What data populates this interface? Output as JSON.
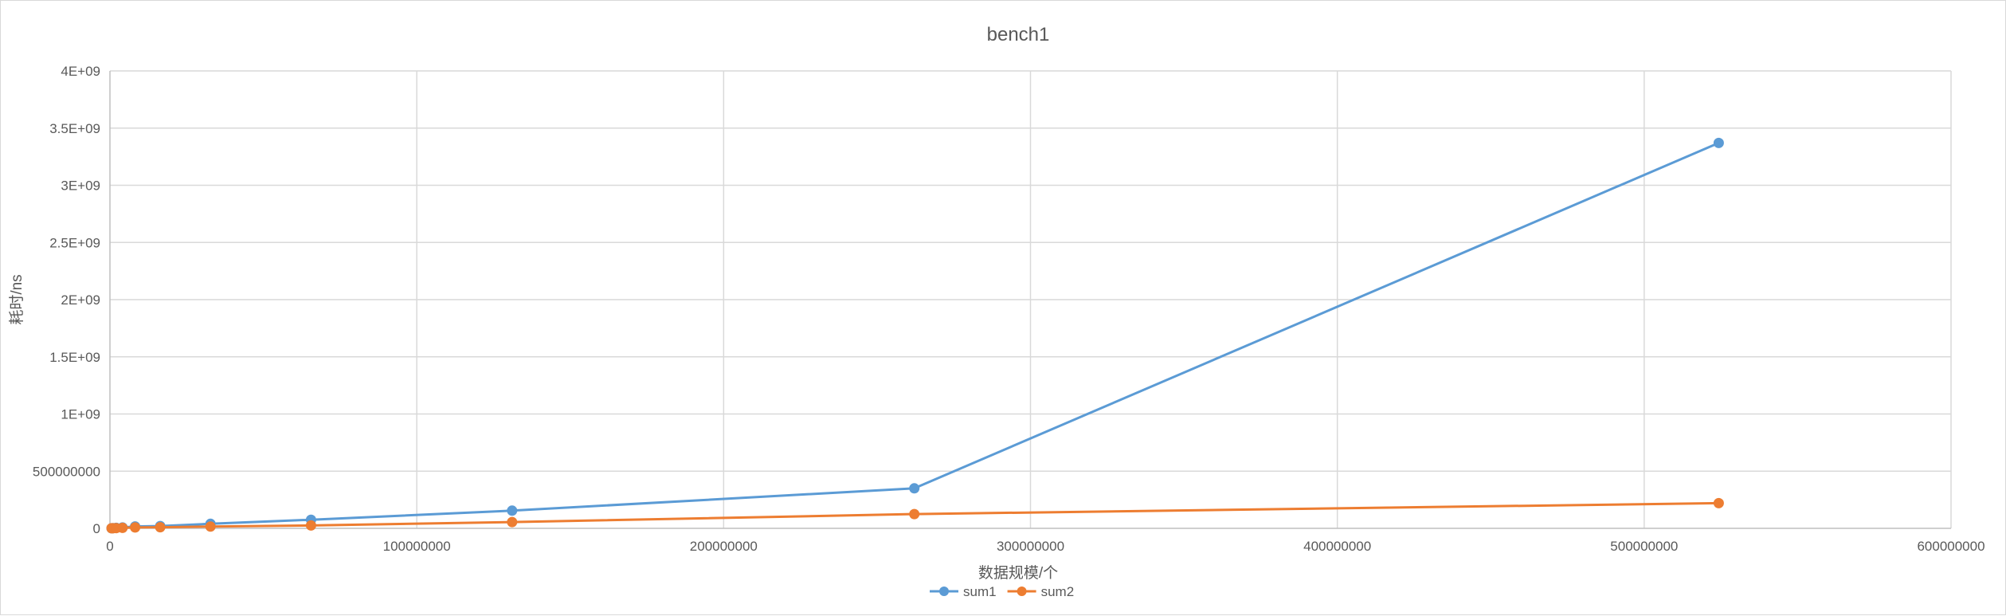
{
  "chart_data": {
    "type": "line",
    "title": "bench1",
    "xlabel": "数据规模/个",
    "ylabel": "耗时/ns",
    "xlim": [
      0,
      600000000
    ],
    "ylim": [
      0,
      4000000000
    ],
    "x_ticks": [
      "0",
      "100000000",
      "200000000",
      "300000000",
      "400000000",
      "500000000",
      "600000000"
    ],
    "y_ticks": [
      "0",
      "500000000",
      "1E+09",
      "1.5E+09",
      "2E+09",
      "2.5E+09",
      "3E+09",
      "3.5E+09",
      "4E+09"
    ],
    "grid": true,
    "legend_position": "bottom",
    "series": [
      {
        "name": "sum1",
        "color": "#5b9bd5",
        "x": [
          512000,
          1024000,
          2048000,
          4096000,
          8192000,
          16384000,
          32768000,
          65536000,
          131072000,
          262144000,
          524288000
        ],
        "y": [
          1000000,
          2000000,
          4000000,
          8000000,
          17000000,
          20000000,
          40000000,
          75000000,
          155000000,
          350000000,
          3370000000
        ]
      },
      {
        "name": "sum2",
        "color": "#ed7d31",
        "x": [
          512000,
          1024000,
          2048000,
          4096000,
          8192000,
          16384000,
          32768000,
          65536000,
          131072000,
          262144000,
          524288000
        ],
        "y": [
          500000,
          1000000,
          2000000,
          4000000,
          8000000,
          10000000,
          15000000,
          25000000,
          55000000,
          125000000,
          220000000
        ]
      }
    ]
  }
}
